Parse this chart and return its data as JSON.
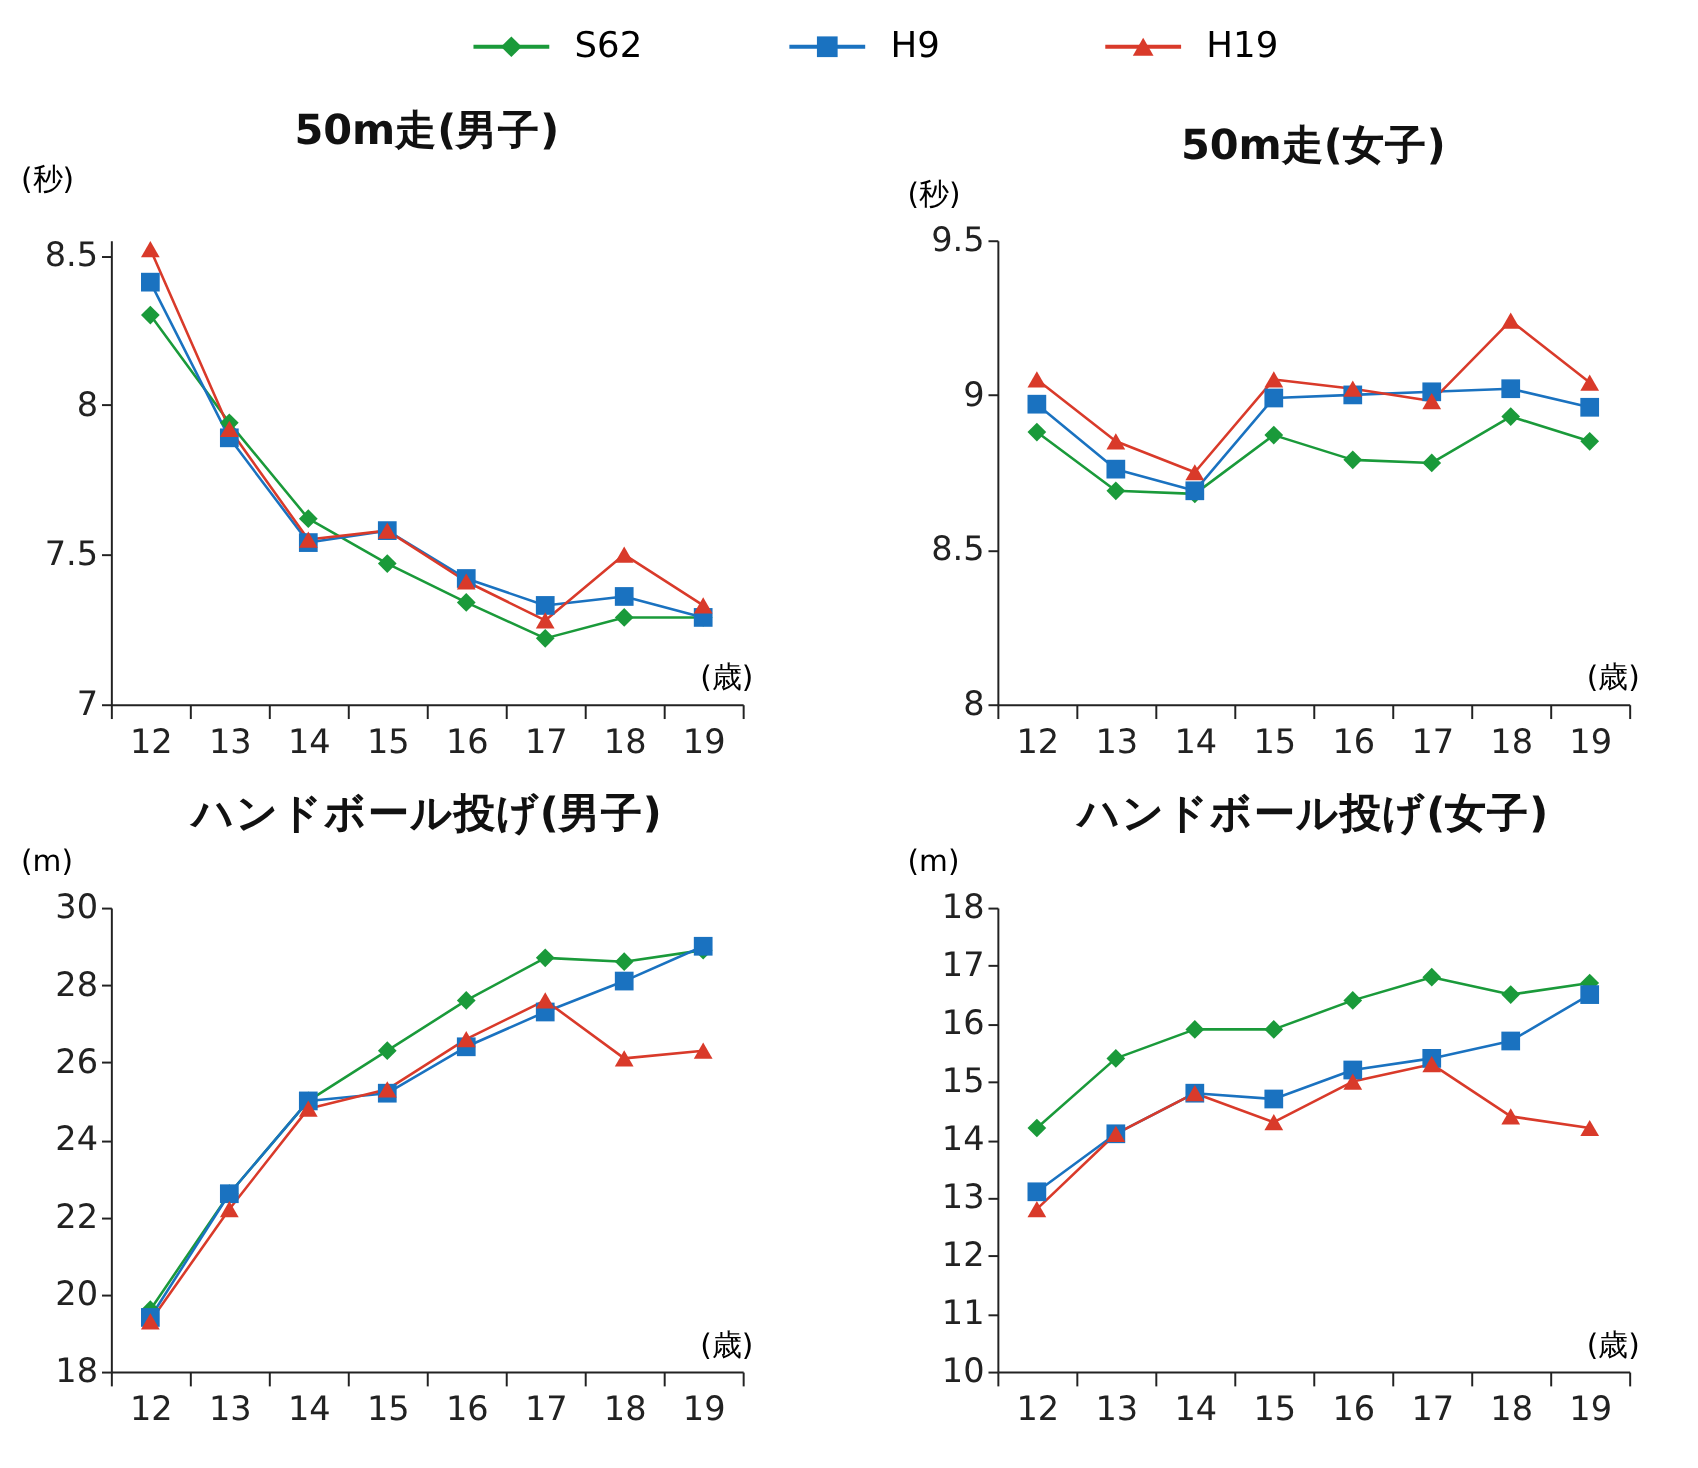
{
  "chart_data": [
    {
      "type": "line",
      "title": "50m走(男子)",
      "ylabel": "(秒)",
      "xlabel": "(歳)",
      "legend": "top",
      "grid": false,
      "categories": [
        "12",
        "13",
        "14",
        "15",
        "16",
        "17",
        "18",
        "19"
      ],
      "ylim": [
        7,
        8.55
      ],
      "yticks": [
        7,
        7.5,
        8,
        8.5
      ],
      "series": [
        {
          "name": "S62",
          "color": "#1a9a3a",
          "marker": "diamond",
          "values": [
            8.3,
            7.94,
            7.62,
            7.47,
            7.34,
            7.22,
            7.29,
            7.29
          ]
        },
        {
          "name": "H9",
          "color": "#1a72c0",
          "marker": "square",
          "values": [
            8.41,
            7.89,
            7.54,
            7.58,
            7.42,
            7.33,
            7.36,
            7.29
          ]
        },
        {
          "name": "H19",
          "color": "#d93a2a",
          "marker": "triangle",
          "values": [
            8.52,
            7.92,
            7.55,
            7.58,
            7.41,
            7.28,
            7.5,
            7.33
          ]
        }
      ]
    },
    {
      "type": "line",
      "title": "50m走(女子)",
      "ylabel": "(秒)",
      "xlabel": "(歳)",
      "grid": false,
      "categories": [
        "12",
        "13",
        "14",
        "15",
        "16",
        "17",
        "18",
        "19"
      ],
      "ylim": [
        8,
        9.5
      ],
      "yticks": [
        8,
        8.5,
        9,
        9.5
      ],
      "series": [
        {
          "color": "#1a9a3a",
          "marker": "diamond",
          "values": [
            8.88,
            8.69,
            8.68,
            8.87,
            8.79,
            8.78,
            8.93,
            8.85
          ]
        },
        {
          "color": "#1a72c0",
          "marker": "square",
          "values": [
            8.97,
            8.76,
            8.69,
            8.99,
            9.0,
            9.01,
            9.02,
            8.96
          ]
        },
        {
          "color": "#d93a2a",
          "marker": "triangle",
          "values": [
            9.05,
            8.85,
            8.75,
            9.05,
            9.02,
            8.98,
            9.24,
            9.04
          ]
        }
      ]
    },
    {
      "type": "line",
      "title": "ハンドボール投げ(男子)",
      "ylabel": "(m)",
      "xlabel": "(歳)",
      "grid": false,
      "categories": [
        "12",
        "13",
        "14",
        "15",
        "16",
        "17",
        "18",
        "19"
      ],
      "ylim": [
        18,
        30
      ],
      "yticks": [
        18,
        20,
        22,
        24,
        26,
        28,
        30
      ],
      "series": [
        {
          "color": "#1a9a3a",
          "marker": "diamond",
          "values": [
            19.6,
            22.6,
            25.0,
            26.3,
            27.6,
            28.7,
            28.6,
            28.9
          ]
        },
        {
          "color": "#1a72c0",
          "marker": "square",
          "values": [
            19.4,
            22.6,
            25.0,
            25.2,
            26.4,
            27.3,
            28.1,
            29.0
          ]
        },
        {
          "color": "#d93a2a",
          "marker": "triangle",
          "values": [
            19.3,
            22.2,
            24.8,
            25.3,
            26.6,
            27.6,
            26.1,
            26.3
          ]
        }
      ]
    },
    {
      "type": "line",
      "title": "ハンドボール投げ(女子)",
      "ylabel": "(m)",
      "xlabel": "(歳)",
      "grid": false,
      "categories": [
        "12",
        "13",
        "14",
        "15",
        "16",
        "17",
        "18",
        "19"
      ],
      "ylim": [
        10,
        18
      ],
      "yticks": [
        10,
        11,
        12,
        13,
        14,
        15,
        16,
        17,
        18
      ],
      "series": [
        {
          "color": "#1a9a3a",
          "marker": "diamond",
          "values": [
            14.2,
            15.4,
            15.9,
            15.9,
            16.4,
            16.8,
            16.5,
            16.7
          ]
        },
        {
          "color": "#1a72c0",
          "marker": "square",
          "values": [
            13.1,
            14.1,
            14.8,
            14.7,
            15.2,
            15.4,
            15.7,
            16.5
          ]
        },
        {
          "color": "#d93a2a",
          "marker": "triangle",
          "values": [
            12.8,
            14.1,
            14.8,
            14.3,
            15.0,
            15.3,
            14.4,
            14.2
          ]
        }
      ]
    }
  ]
}
